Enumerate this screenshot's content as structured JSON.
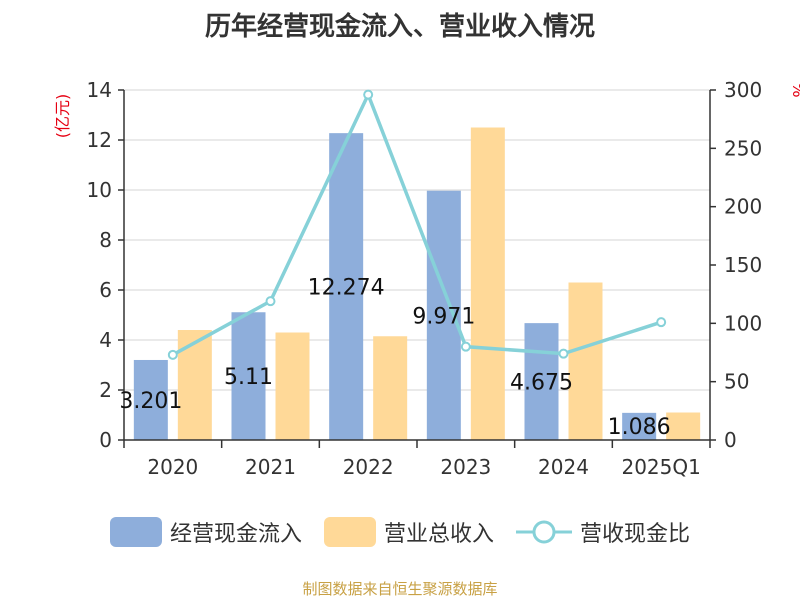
{
  "chart_data": {
    "type": "bar",
    "title": "历年经营现金流入、营业收入情况",
    "categories": [
      "2020",
      "2021",
      "2022",
      "2023",
      "2024",
      "2025Q1"
    ],
    "series": [
      {
        "name": "经营现金流入",
        "kind": "bar",
        "axis": "left",
        "color": "#8eaedb",
        "values": [
          3.201,
          5.11,
          12.274,
          9.971,
          4.675,
          1.086
        ],
        "labels": [
          "3.201",
          "5.11",
          "12.274",
          "9.971",
          "4.675",
          "1.086"
        ]
      },
      {
        "name": "营业总收入",
        "kind": "bar",
        "axis": "left",
        "color": "#ffd998",
        "values": [
          4.4,
          4.3,
          4.15,
          12.5,
          6.3,
          1.1
        ]
      },
      {
        "name": "营收现金比",
        "kind": "line",
        "axis": "right",
        "color": "#86d1d8",
        "values": [
          73,
          119,
          296,
          80,
          74,
          101
        ]
      }
    ],
    "y_left": {
      "label": "(亿元)",
      "min": 0,
      "max": 14,
      "ticks": [
        0,
        2,
        4,
        6,
        8,
        10,
        12,
        14
      ]
    },
    "y_right": {
      "label": "%",
      "min": 0,
      "max": 300,
      "ticks": [
        0,
        50,
        100,
        150,
        200,
        250,
        300
      ]
    },
    "grid": true,
    "legend_position": "bottom"
  },
  "source": "制图数据来自恒生聚源数据库"
}
